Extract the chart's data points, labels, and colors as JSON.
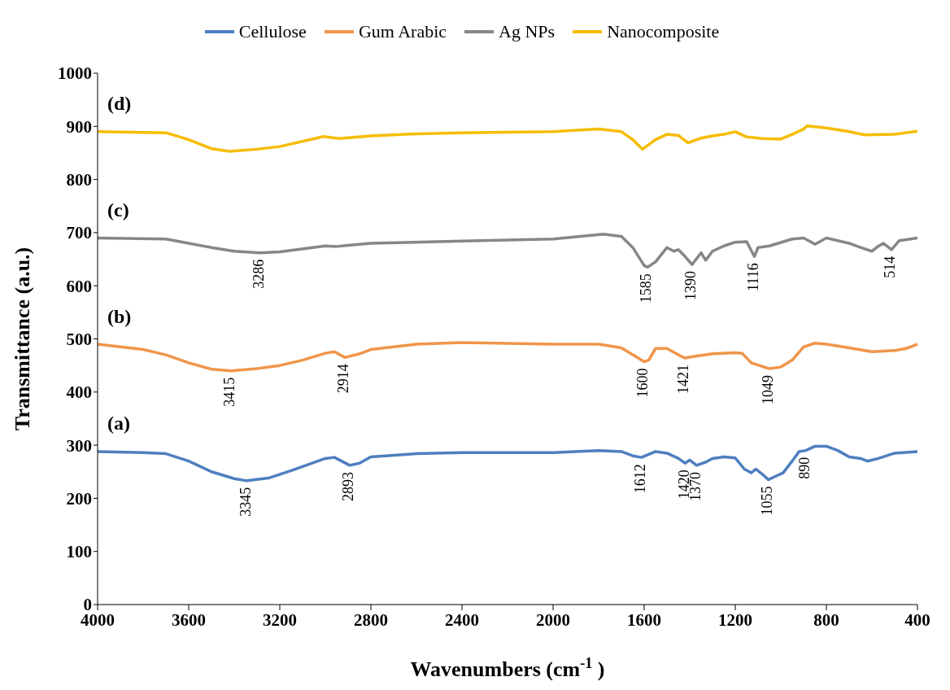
{
  "chart_data": {
    "type": "line",
    "xlabel": "Wavenumbers (cm$^{-1}$)",
    "ylabel": "Transmittance (a.u.)",
    "xlim": [
      4000,
      400
    ],
    "xticks": [
      4000,
      3600,
      3200,
      2800,
      2400,
      2000,
      1600,
      1200,
      800,
      400
    ],
    "ylim": [
      0,
      1000
    ],
    "yticks": [
      0,
      100,
      200,
      300,
      400,
      500,
      600,
      700,
      800,
      900,
      1000
    ],
    "grid": false,
    "legend": "top",
    "marker": "none",
    "line_style": "solid",
    "series": [
      {
        "name": "Cellulose",
        "color": "#4e7fbf",
        "x": [
          4000,
          3800,
          3700,
          3600,
          3500,
          3400,
          3345,
          3250,
          3150,
          3000,
          2960,
          2893,
          2850,
          2800,
          2600,
          2400,
          2000,
          1800,
          1700,
          1650,
          1612,
          1550,
          1500,
          1450,
          1420,
          1400,
          1370,
          1330,
          1300,
          1250,
          1200,
          1160,
          1130,
          1110,
          1080,
          1055,
          1030,
          990,
          950,
          920,
          890,
          850,
          800,
          750,
          700,
          650,
          620,
          580,
          500,
          400
        ],
        "values": [
          288,
          286,
          284,
          270,
          250,
          237,
          233,
          238,
          252,
          275,
          277,
          262,
          266,
          278,
          284,
          286,
          286,
          290,
          288,
          280,
          277,
          288,
          285,
          275,
          266,
          272,
          262,
          268,
          275,
          278,
          276,
          255,
          248,
          255,
          245,
          235,
          240,
          248,
          270,
          288,
          290,
          298,
          298,
          290,
          278,
          275,
          270,
          274,
          285,
          288
        ]
      },
      {
        "name": "Gum Arabic",
        "color": "#f0954a",
        "x": [
          4000,
          3800,
          3700,
          3600,
          3500,
          3415,
          3300,
          3200,
          3100,
          3000,
          2960,
          2914,
          2850,
          2800,
          2600,
          2400,
          2000,
          1800,
          1700,
          1650,
          1600,
          1580,
          1550,
          1500,
          1450,
          1421,
          1380,
          1300,
          1200,
          1170,
          1130,
          1080,
          1049,
          1000,
          950,
          900,
          850,
          800,
          700,
          600,
          500,
          450,
          400
        ],
        "values": [
          490,
          480,
          470,
          455,
          443,
          440,
          444,
          450,
          460,
          473,
          476,
          465,
          472,
          480,
          490,
          493,
          490,
          490,
          483,
          470,
          457,
          460,
          482,
          482,
          470,
          464,
          467,
          472,
          474,
          473,
          455,
          448,
          444,
          447,
          460,
          485,
          492,
          490,
          483,
          476,
          478,
          482,
          490
        ]
      },
      {
        "name": "Ag NPs",
        "color": "#878787",
        "x": [
          4000,
          3700,
          3600,
          3500,
          3400,
          3286,
          3200,
          3000,
          2950,
          2900,
          2800,
          2400,
          2000,
          1779,
          1700,
          1650,
          1600,
          1585,
          1550,
          1500,
          1470,
          1450,
          1420,
          1390,
          1350,
          1330,
          1300,
          1250,
          1200,
          1150,
          1116,
          1100,
          1050,
          950,
          900,
          870,
          850,
          800,
          700,
          650,
          600,
          570,
          550,
          514,
          480,
          400
        ],
        "values": [
          690,
          688,
          680,
          672,
          665,
          662,
          664,
          675,
          674,
          676,
          680,
          684,
          688,
          697,
          693,
          672,
          638,
          635,
          645,
          672,
          665,
          668,
          655,
          640,
          662,
          648,
          665,
          675,
          682,
          683,
          655,
          672,
          675,
          688,
          690,
          683,
          678,
          690,
          680,
          672,
          665,
          675,
          680,
          668,
          685,
          690
        ]
      },
      {
        "name": "Nanocomposite",
        "color": "#f6bc00",
        "x": [
          4000,
          3700,
          3600,
          3500,
          3421,
          3300,
          3200,
          3007,
          2940,
          2800,
          2600,
          2400,
          2000,
          1800,
          1700,
          1650,
          1607,
          1550,
          1500,
          1450,
          1407,
          1350,
          1300,
          1250,
          1200,
          1150,
          1081,
          1000,
          950,
          900,
          884,
          800,
          700,
          632,
          500,
          400
        ],
        "values": [
          890,
          888,
          875,
          858,
          853,
          857,
          862,
          881,
          877,
          882,
          886,
          888,
          890,
          895,
          890,
          875,
          857,
          875,
          885,
          883,
          869,
          878,
          882,
          885,
          890,
          880,
          877,
          876,
          885,
          895,
          901,
          897,
          890,
          884,
          885,
          891
        ]
      }
    ],
    "annotations": [
      "(a)",
      "(b)",
      "(c)",
      "(d)",
      {
        "text": "3345",
        "x": 3345,
        "y": 233
      },
      {
        "text": "2893",
        "x": 2893,
        "y": 262
      },
      {
        "text": "1612",
        "x": 1612,
        "y": 277
      },
      {
        "text": "1420",
        "x": 1420,
        "y": 266
      },
      {
        "text": "1370",
        "x": 1370,
        "y": 262
      },
      {
        "text": "1055",
        "x": 1055,
        "y": 235
      },
      {
        "text": "890",
        "x": 890,
        "y": 290
      },
      {
        "text": "3415",
        "x": 3415,
        "y": 440
      },
      {
        "text": "2914",
        "x": 2914,
        "y": 465
      },
      {
        "text": "1600",
        "x": 1600,
        "y": 457
      },
      {
        "text": "1421",
        "x": 1421,
        "y": 464
      },
      {
        "text": "1049",
        "x": 1049,
        "y": 444
      },
      {
        "text": "3286",
        "x": 3286,
        "y": 662
      },
      {
        "text": "1585",
        "x": 1585,
        "y": 635
      },
      {
        "text": "1390",
        "x": 1390,
        "y": 640
      },
      {
        "text": "1116",
        "x": 1116,
        "y": 655
      },
      {
        "text": "514",
        "x": 514,
        "y": 668
      }
    ]
  }
}
